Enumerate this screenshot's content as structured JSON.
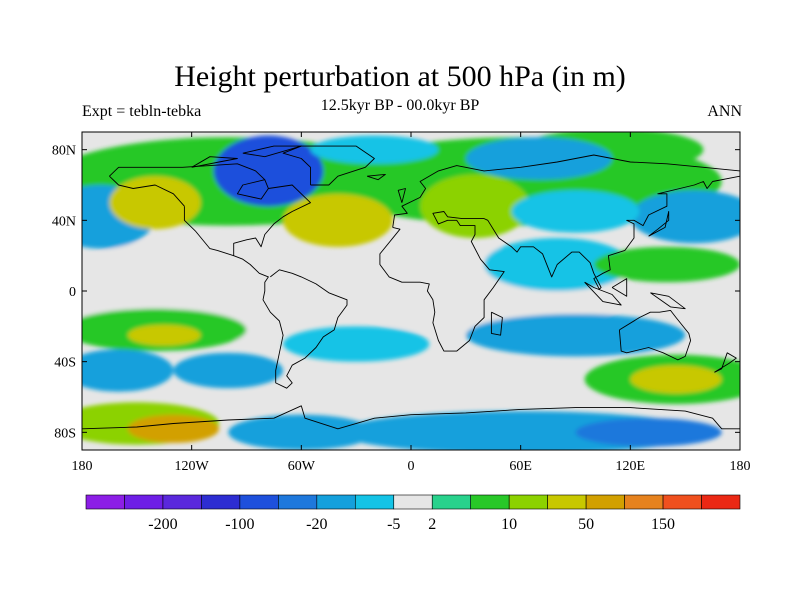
{
  "chart_data": {
    "type": "heatmap",
    "title": "Height perturbation at 500 hPa (in m)",
    "subtitle": "12.5kyr BP - 00.0kyr BP",
    "left_label": "Expt = tebln-tebka",
    "right_label": "ANN",
    "xlim": [
      -180,
      180
    ],
    "ylim": [
      -90,
      90
    ],
    "x_ticks": [
      {
        "value": -180,
        "label": "180"
      },
      {
        "value": -120,
        "label": "120W"
      },
      {
        "value": -60,
        "label": "60W"
      },
      {
        "value": 0,
        "label": "0"
      },
      {
        "value": 60,
        "label": "60E"
      },
      {
        "value": 120,
        "label": "120E"
      },
      {
        "value": 180,
        "label": "180"
      }
    ],
    "y_ticks": [
      {
        "value": 80,
        "label": "80N"
      },
      {
        "value": 40,
        "label": "40N"
      },
      {
        "value": 0,
        "label": "0"
      },
      {
        "value": -40,
        "label": "40S"
      },
      {
        "value": -80,
        "label": "80S"
      }
    ],
    "colorbar": {
      "colors": [
        "#8c1ee6",
        "#6e1ee6",
        "#5a28dc",
        "#2d2dd2",
        "#1e50dc",
        "#1e78dc",
        "#14a0dc",
        "#14c3e6",
        "#e6e6e6",
        "#28d28c",
        "#28c828",
        "#8cd200",
        "#c8c800",
        "#d2a000",
        "#e6821e",
        "#f0501e",
        "#eb2814"
      ],
      "labels": [
        {
          "after_index": 1,
          "text": "-200"
        },
        {
          "after_index": 3,
          "text": "-100"
        },
        {
          "after_index": 5,
          "text": "-20"
        },
        {
          "after_index": 7,
          "text": "-5"
        },
        {
          "after_index": 8,
          "text": "2"
        },
        {
          "after_index": 10,
          "text": "10"
        },
        {
          "after_index": 12,
          "text": "50"
        },
        {
          "after_index": 14,
          "text": "150"
        }
      ]
    },
    "field_regions": [
      {
        "lon": -120,
        "lat": 0,
        "rlon": 70,
        "rlat": 30,
        "level": 8
      },
      {
        "lon": 40,
        "lat": 0,
        "rlon": 80,
        "rlat": 25,
        "level": 8
      },
      {
        "lon": -100,
        "lat": 62,
        "rlon": 100,
        "rlat": 25,
        "level": 10
      },
      {
        "lon": 60,
        "lat": 62,
        "rlon": 110,
        "rlat": 25,
        "level": 10
      },
      {
        "lon": -170,
        "lat": 42,
        "rlon": 30,
        "rlat": 18,
        "level": 6
      },
      {
        "lon": -140,
        "lat": 50,
        "rlon": 25,
        "rlat": 15,
        "level": 12
      },
      {
        "lon": -78,
        "lat": 68,
        "rlon": 30,
        "rlat": 20,
        "level": 4
      },
      {
        "lon": -40,
        "lat": 40,
        "rlon": 30,
        "rlat": 15,
        "level": 12
      },
      {
        "lon": -20,
        "lat": 80,
        "rlon": 35,
        "rlat": 8,
        "level": 7
      },
      {
        "lon": 35,
        "lat": 48,
        "rlon": 30,
        "rlat": 18,
        "level": 11
      },
      {
        "lon": 110,
        "lat": 80,
        "rlon": 50,
        "rlat": 12,
        "level": 10
      },
      {
        "lon": 70,
        "lat": 75,
        "rlon": 40,
        "rlat": 12,
        "level": 6
      },
      {
        "lon": 155,
        "lat": 42,
        "rlon": 35,
        "rlat": 15,
        "level": 6
      },
      {
        "lon": 90,
        "lat": 45,
        "rlon": 35,
        "rlat": 12,
        "level": 7
      },
      {
        "lon": 80,
        "lat": 15,
        "rlon": 40,
        "rlat": 15,
        "level": 7
      },
      {
        "lon": 140,
        "lat": 15,
        "rlon": 40,
        "rlat": 10,
        "level": 10
      },
      {
        "lon": -140,
        "lat": -22,
        "rlon": 50,
        "rlat": 12,
        "level": 10
      },
      {
        "lon": -135,
        "lat": -25,
        "rlon": 20,
        "rlat": 6,
        "level": 12
      },
      {
        "lon": -30,
        "lat": -30,
        "rlon": 40,
        "rlat": 10,
        "level": 7
      },
      {
        "lon": 90,
        "lat": -25,
        "rlon": 60,
        "rlat": 12,
        "level": 6
      },
      {
        "lon": -160,
        "lat": -45,
        "rlon": 30,
        "rlat": 12,
        "level": 6
      },
      {
        "lon": -100,
        "lat": -45,
        "rlon": 30,
        "rlat": 10,
        "level": 6
      },
      {
        "lon": 145,
        "lat": -50,
        "rlon": 50,
        "rlat": 14,
        "level": 10
      },
      {
        "lon": 145,
        "lat": -50,
        "rlon": 25,
        "rlat": 8,
        "level": 12
      },
      {
        "lon": -150,
        "lat": -75,
        "rlon": 45,
        "rlat": 12,
        "level": 11
      },
      {
        "lon": -130,
        "lat": -78,
        "rlon": 25,
        "rlat": 8,
        "level": 13
      },
      {
        "lon": -60,
        "lat": -80,
        "rlon": 40,
        "rlat": 10,
        "level": 6
      },
      {
        "lon": 60,
        "lat": -80,
        "rlon": 100,
        "rlat": 12,
        "level": 6
      },
      {
        "lon": 130,
        "lat": -80,
        "rlon": 40,
        "rlat": 8,
        "level": 5
      }
    ],
    "coastlines": [
      [
        [
          -165,
          65
        ],
        [
          -160,
          70
        ],
        [
          -140,
          70
        ],
        [
          -125,
          70
        ],
        [
          -95,
          72
        ],
        [
          -85,
          68
        ],
        [
          -80,
          63
        ],
        [
          -78,
          58
        ],
        [
          -65,
          60
        ],
        [
          -60,
          55
        ],
        [
          -55,
          50
        ],
        [
          -65,
          45
        ],
        [
          -70,
          42
        ],
        [
          -75,
          38
        ],
        [
          -80,
          32
        ],
        [
          -82,
          25
        ],
        [
          -85,
          30
        ],
        [
          -90,
          29
        ],
        [
          -97,
          27
        ],
        [
          -97,
          20
        ],
        [
          -92,
          18
        ],
        [
          -88,
          15
        ],
        [
          -83,
          10
        ],
        [
          -78,
          8
        ],
        [
          -80,
          5
        ],
        [
          -80,
          0
        ],
        [
          -81,
          -5
        ],
        [
          -77,
          -12
        ],
        [
          -72,
          -17
        ],
        [
          -70,
          -25
        ],
        [
          -72,
          -35
        ],
        [
          -74,
          -45
        ],
        [
          -74,
          -52
        ],
        [
          -68,
          -55
        ],
        [
          -65,
          -52
        ],
        [
          -68,
          -48
        ],
        [
          -65,
          -42
        ],
        [
          -58,
          -38
        ],
        [
          -52,
          -32
        ],
        [
          -48,
          -26
        ],
        [
          -42,
          -22
        ],
        [
          -40,
          -15
        ],
        [
          -35,
          -8
        ],
        [
          -35,
          -5
        ],
        [
          -45,
          -1
        ],
        [
          -52,
          4
        ],
        [
          -60,
          8
        ],
        [
          -65,
          10
        ],
        [
          -72,
          12
        ],
        [
          -77,
          8
        ]
      ],
      [
        [
          -80,
          63
        ],
        [
          -92,
          60
        ],
        [
          -95,
          55
        ],
        [
          -82,
          52
        ],
        [
          -78,
          58
        ]
      ],
      [
        [
          -124,
          48
        ],
        [
          -124,
          40
        ],
        [
          -118,
          34
        ],
        [
          -110,
          24
        ],
        [
          -106,
          23
        ],
        [
          -97,
          20
        ]
      ],
      [
        [
          -165,
          65
        ],
        [
          -160,
          60
        ],
        [
          -152,
          58
        ],
        [
          -140,
          60
        ],
        [
          -130,
          55
        ],
        [
          -124,
          48
        ]
      ],
      [
        [
          -55,
          60
        ],
        [
          -45,
          60
        ],
        [
          -40,
          65
        ],
        [
          -25,
          70
        ],
        [
          -20,
          75
        ],
        [
          -30,
          82
        ],
        [
          -60,
          82
        ],
        [
          -70,
          78
        ],
        [
          -60,
          75
        ],
        [
          -55,
          70
        ],
        [
          -55,
          60
        ]
      ],
      [
        [
          -10,
          36
        ],
        [
          -9,
          43
        ],
        [
          -2,
          44
        ],
        [
          -5,
          48
        ],
        [
          5,
          53
        ],
        [
          8,
          58
        ],
        [
          5,
          62
        ],
        [
          15,
          68
        ],
        [
          25,
          71
        ],
        [
          40,
          68
        ],
        [
          60,
          70
        ],
        [
          80,
          73
        ],
        [
          100,
          77
        ],
        [
          120,
          73
        ],
        [
          140,
          72
        ],
        [
          160,
          70
        ],
        [
          180,
          68
        ]
      ],
      [
        [
          -10,
          36
        ],
        [
          -6,
          35
        ],
        [
          -17,
          21
        ],
        [
          -17,
          15
        ],
        [
          -12,
          8
        ],
        [
          -5,
          5
        ],
        [
          5,
          5
        ],
        [
          10,
          4
        ],
        [
          9,
          0
        ],
        [
          12,
          -5
        ],
        [
          13,
          -12
        ],
        [
          12,
          -18
        ],
        [
          15,
          -28
        ],
        [
          18,
          -34
        ],
        [
          25,
          -34
        ],
        [
          32,
          -28
        ],
        [
          35,
          -20
        ],
        [
          40,
          -15
        ],
        [
          40,
          -5
        ],
        [
          45,
          2
        ],
        [
          51,
          11
        ],
        [
          43,
          12
        ],
        [
          38,
          18
        ],
        [
          33,
          28
        ],
        [
          35,
          32
        ],
        [
          35,
          37
        ],
        [
          27,
          37
        ],
        [
          25,
          40
        ],
        [
          20,
          40
        ],
        [
          15,
          38
        ],
        [
          12,
          44
        ],
        [
          18,
          45
        ],
        [
          20,
          42
        ],
        [
          28,
          41
        ],
        [
          40,
          41
        ],
        [
          42,
          40
        ],
        [
          48,
          30
        ],
        [
          55,
          25
        ],
        [
          58,
          22
        ],
        [
          60,
          25
        ],
        [
          67,
          25
        ],
        [
          72,
          21
        ],
        [
          77,
          8
        ],
        [
          80,
          15
        ],
        [
          88,
          22
        ],
        [
          92,
          22
        ],
        [
          98,
          16
        ],
        [
          100,
          10
        ],
        [
          104,
          2
        ],
        [
          103,
          1
        ],
        [
          100,
          7
        ],
        [
          105,
          10
        ],
        [
          109,
          12
        ],
        [
          108,
          20
        ],
        [
          117,
          23
        ],
        [
          122,
          30
        ],
        [
          122,
          38
        ],
        [
          118,
          40
        ],
        [
          122,
          40
        ],
        [
          127,
          37
        ],
        [
          130,
          43
        ],
        [
          140,
          48
        ],
        [
          140,
          55
        ],
        [
          135,
          55
        ],
        [
          155,
          60
        ],
        [
          160,
          62
        ],
        [
          162,
          58
        ],
        [
          165,
          62
        ],
        [
          180,
          65
        ]
      ],
      [
        [
          114,
          -22
        ],
        [
          115,
          -34
        ],
        [
          118,
          -35
        ],
        [
          130,
          -32
        ],
        [
          138,
          -35
        ],
        [
          146,
          -39
        ],
        [
          150,
          -37
        ],
        [
          153,
          -28
        ],
        [
          152,
          -24
        ],
        [
          145,
          -15
        ],
        [
          142,
          -11
        ],
        [
          136,
          -12
        ],
        [
          131,
          -12
        ],
        [
          125,
          -15
        ],
        [
          114,
          -22
        ]
      ],
      [
        [
          166,
          -46
        ],
        [
          174,
          -41
        ],
        [
          178,
          -38
        ],
        [
          173,
          -35
        ],
        [
          170,
          -44
        ],
        [
          166,
          -46
        ]
      ],
      [
        [
          44,
          -12
        ],
        [
          50,
          -15
        ],
        [
          49,
          -25
        ],
        [
          44,
          -24
        ],
        [
          44,
          -12
        ]
      ],
      [
        [
          95,
          5
        ],
        [
          105,
          -6
        ],
        [
          115,
          -8
        ],
        [
          110,
          -2
        ],
        [
          100,
          2
        ],
        [
          95,
          5
        ]
      ],
      [
        [
          110,
          2
        ],
        [
          118,
          7
        ],
        [
          118,
          -3
        ],
        [
          110,
          2
        ]
      ],
      [
        [
          131,
          -1
        ],
        [
          141,
          -3
        ],
        [
          150,
          -10
        ],
        [
          142,
          -9
        ],
        [
          131,
          -1
        ]
      ],
      [
        [
          130,
          31
        ],
        [
          135,
          35
        ],
        [
          141,
          40
        ],
        [
          141,
          45
        ],
        [
          139,
          36
        ],
        [
          130,
          31
        ]
      ],
      [
        [
          -5,
          50
        ],
        [
          -3,
          58
        ],
        [
          -7,
          57
        ],
        [
          -5,
          50
        ]
      ],
      [
        [
          -24,
          65
        ],
        [
          -14,
          66
        ],
        [
          -18,
          63
        ],
        [
          -24,
          65
        ]
      ],
      [
        [
          -180,
          -78
        ],
        [
          -150,
          -77
        ],
        [
          -130,
          -75
        ],
        [
          -100,
          -73
        ],
        [
          -75,
          -72
        ],
        [
          -60,
          -65
        ],
        [
          -58,
          -72
        ],
        [
          -40,
          -78
        ],
        [
          -20,
          -72
        ],
        [
          0,
          -70
        ],
        [
          30,
          -69
        ],
        [
          60,
          -67
        ],
        [
          90,
          -66
        ],
        [
          120,
          -66
        ],
        [
          150,
          -68
        ],
        [
          165,
          -72
        ],
        [
          170,
          -78
        ],
        [
          180,
          -78
        ]
      ],
      [
        [
          -92,
          78
        ],
        [
          -75,
          82
        ],
        [
          -60,
          82
        ],
        [
          -80,
          76
        ],
        [
          -92,
          78
        ]
      ],
      [
        [
          -120,
          70
        ],
        [
          -105,
          73
        ],
        [
          -95,
          75
        ],
        [
          -110,
          76
        ],
        [
          -120,
          70
        ]
      ]
    ]
  }
}
